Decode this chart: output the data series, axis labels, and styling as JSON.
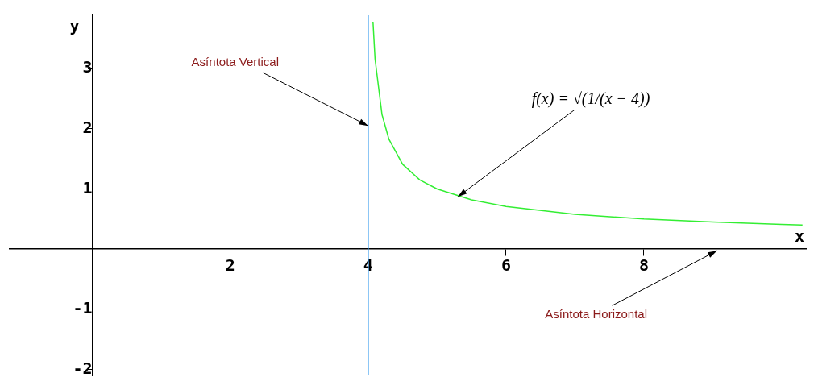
{
  "chart_data": {
    "type": "line",
    "xlabel": "x",
    "ylabel": "y",
    "xlim": [
      -1.2,
      10.35
    ],
    "ylim": [
      -2.1,
      3.9
    ],
    "xticks": [
      2,
      4,
      6,
      8
    ],
    "yticks": [
      -2,
      -1,
      1,
      2,
      3
    ],
    "grid": false,
    "legend": false,
    "marker": "none",
    "line_style": "solid",
    "series": [
      {
        "color": "#33ee33",
        "x": [
          4.07,
          4.1,
          4.2,
          4.3,
          4.5,
          4.75,
          5,
          5.5,
          6,
          7,
          8,
          9,
          10,
          10.3
        ],
        "values": [
          3.78,
          3.16,
          2.24,
          1.83,
          1.41,
          1.15,
          1,
          0.82,
          0.71,
          0.58,
          0.5,
          0.45,
          0.41,
          0.4
        ]
      }
    ],
    "ref_lines": [
      {
        "axis": "x",
        "value": 4,
        "color": "#3399ee"
      }
    ],
    "annotations": [
      {
        "text": "Asíntota Vertical",
        "x": 4,
        "y": 2.05
      },
      {
        "text": "f(x) = √(1/(x − 4))",
        "x": 5.3,
        "y": 0.87
      },
      "Asíntota Horizontal"
    ]
  }
}
